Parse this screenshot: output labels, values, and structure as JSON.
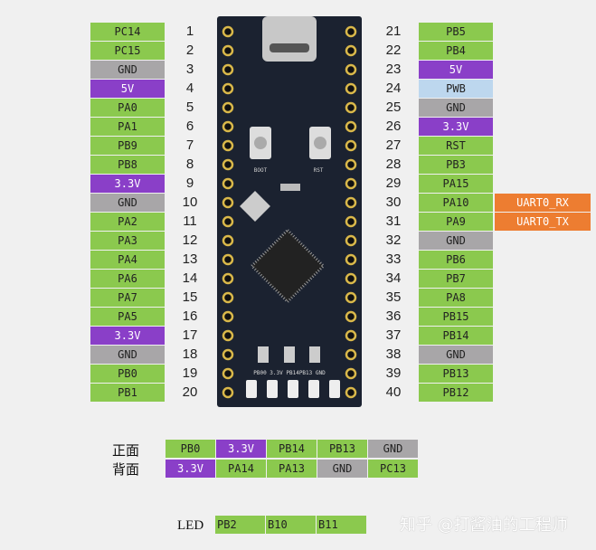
{
  "colors": {
    "io": "#8bc94e",
    "power": "#8a3fc8",
    "gnd": "#a8a6a8",
    "pwb": "#bdd7ee",
    "uart": "#ed7d31",
    "board": "#1b2230"
  },
  "left_pins": [
    {
      "n": "1",
      "name": "PC14",
      "type": "io"
    },
    {
      "n": "2",
      "name": "PC15",
      "type": "io"
    },
    {
      "n": "3",
      "name": "GND",
      "type": "gnd"
    },
    {
      "n": "4",
      "name": "5V",
      "type": "power"
    },
    {
      "n": "5",
      "name": "PA0",
      "type": "io"
    },
    {
      "n": "6",
      "name": "PA1",
      "type": "io"
    },
    {
      "n": "7",
      "name": "PB9",
      "type": "io"
    },
    {
      "n": "8",
      "name": "PB8",
      "type": "io"
    },
    {
      "n": "9",
      "name": "3.3V",
      "type": "power"
    },
    {
      "n": "10",
      "name": "GND",
      "type": "gnd"
    },
    {
      "n": "11",
      "name": "PA2",
      "type": "io"
    },
    {
      "n": "12",
      "name": "PA3",
      "type": "io"
    },
    {
      "n": "13",
      "name": "PA4",
      "type": "io"
    },
    {
      "n": "14",
      "name": "PA6",
      "type": "io"
    },
    {
      "n": "15",
      "name": "PA7",
      "type": "io"
    },
    {
      "n": "16",
      "name": "PA5",
      "type": "io"
    },
    {
      "n": "17",
      "name": "3.3V",
      "type": "power"
    },
    {
      "n": "18",
      "name": "GND",
      "type": "gnd"
    },
    {
      "n": "19",
      "name": "PB0",
      "type": "io"
    },
    {
      "n": "20",
      "name": "PB1",
      "type": "io"
    }
  ],
  "right_pins": [
    {
      "n": "21",
      "name": "PB5",
      "type": "io"
    },
    {
      "n": "22",
      "name": "PB4",
      "type": "io"
    },
    {
      "n": "23",
      "name": "5V",
      "type": "power"
    },
    {
      "n": "24",
      "name": "PWB",
      "type": "pwb"
    },
    {
      "n": "25",
      "name": "GND",
      "type": "gnd"
    },
    {
      "n": "26",
      "name": "3.3V",
      "type": "power"
    },
    {
      "n": "27",
      "name": "RST",
      "type": "io"
    },
    {
      "n": "28",
      "name": "PB3",
      "type": "io"
    },
    {
      "n": "29",
      "name": "PA15",
      "type": "io"
    },
    {
      "n": "30",
      "name": "PA10",
      "type": "io",
      "alt": "UART0_RX"
    },
    {
      "n": "31",
      "name": "PA9",
      "type": "io",
      "alt": "UART0_TX"
    },
    {
      "n": "32",
      "name": "GND",
      "type": "gnd"
    },
    {
      "n": "33",
      "name": "PB6",
      "type": "io"
    },
    {
      "n": "34",
      "name": "PB7",
      "type": "io"
    },
    {
      "n": "35",
      "name": "PA8",
      "type": "io"
    },
    {
      "n": "36",
      "name": "PB15",
      "type": "io"
    },
    {
      "n": "37",
      "name": "PB14",
      "type": "io"
    },
    {
      "n": "38",
      "name": "GND",
      "type": "gnd"
    },
    {
      "n": "39",
      "name": "PB13",
      "type": "io"
    },
    {
      "n": "40",
      "name": "PB12",
      "type": "io"
    }
  ],
  "front": {
    "label": "正面",
    "pins": [
      {
        "name": "PB0",
        "type": "io"
      },
      {
        "name": "3.3V",
        "type": "power"
      },
      {
        "name": "PB14",
        "type": "io"
      },
      {
        "name": "PB13",
        "type": "io"
      },
      {
        "name": "GND",
        "type": "gnd"
      }
    ]
  },
  "back": {
    "label": "背面",
    "pins": [
      {
        "name": "3.3V",
        "type": "power"
      },
      {
        "name": "PA14",
        "type": "io"
      },
      {
        "name": "PA13",
        "type": "io"
      },
      {
        "name": "GND",
        "type": "gnd"
      },
      {
        "name": "PC13",
        "type": "io"
      }
    ]
  },
  "led": {
    "label": "LED",
    "pins": [
      {
        "name": "PB2",
        "type": "io"
      },
      {
        "name": "B10",
        "type": "io"
      },
      {
        "name": "B11",
        "type": "io"
      }
    ]
  },
  "board": {
    "boot_label": "BOOT",
    "rst_label": "RST",
    "bottom_label": "PB00 3.3V PB14PB13 GND"
  },
  "watermark": "知乎 @打酱油的工程师"
}
